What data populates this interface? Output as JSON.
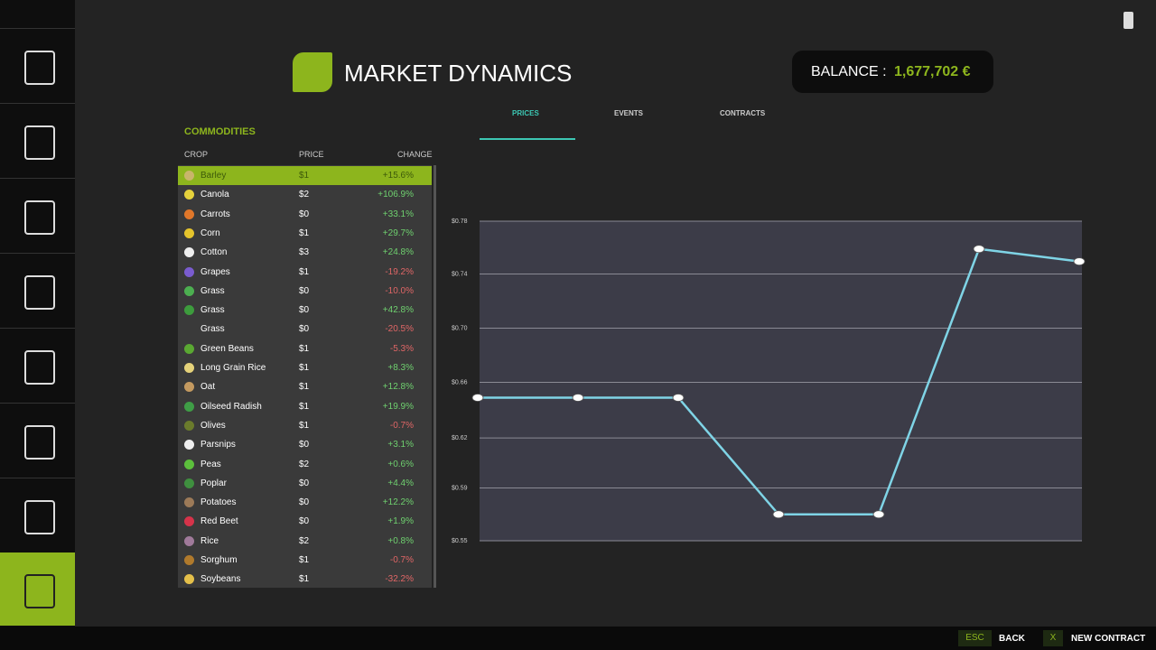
{
  "header": {
    "title": "MARKET DYNAMICS",
    "balance_label": "BALANCE :",
    "balance_value": "1,677,702 €"
  },
  "tabs": [
    "PRICES",
    "EVENTS",
    "CONTRACTS"
  ],
  "commodities": {
    "title": "COMMODITIES",
    "columns": [
      "CROP",
      "PRICE",
      "CHANGE"
    ],
    "rows": [
      [
        "Barley",
        "$1",
        "+15.6%"
      ],
      [
        "Canola",
        "$2",
        "+106.9%"
      ],
      [
        "Carrots",
        "$0",
        "+33.1%"
      ],
      [
        "Corn",
        "$1",
        "+29.7%"
      ],
      [
        "Cotton",
        "$3",
        "+24.8%"
      ],
      [
        "Grapes",
        "$1",
        "-19.2%"
      ],
      [
        "Grass",
        "$0",
        "-10.0%"
      ],
      [
        "Grass",
        "$0",
        "+42.8%"
      ],
      [
        "Grass",
        "$0",
        "-20.5%"
      ],
      [
        "Green Beans",
        "$1",
        "-5.3%"
      ],
      [
        "Long Grain Rice",
        "$1",
        "+8.3%"
      ],
      [
        "Oat",
        "$1",
        "+12.8%"
      ],
      [
        "Oilseed Radish",
        "$1",
        "+19.9%"
      ],
      [
        "Olives",
        "$1",
        "-0.7%"
      ],
      [
        "Parsnips",
        "$0",
        "+3.1%"
      ],
      [
        "Peas",
        "$2",
        "+0.6%"
      ],
      [
        "Poplar",
        "$0",
        "+4.4%"
      ],
      [
        "Potatoes",
        "$0",
        "+12.2%"
      ],
      [
        "Red Beet",
        "$0",
        "+1.9%"
      ],
      [
        "Rice",
        "$2",
        "+0.8%"
      ],
      [
        "Sorghum",
        "$1",
        "-0.7%"
      ],
      [
        "Soybeans",
        "$1",
        "-32.2%"
      ]
    ]
  },
  "chart_data": {
    "type": "line",
    "categories": [
      null,
      null,
      null,
      null,
      null,
      null,
      null
    ],
    "values": [
      0.653,
      0.653,
      0.653,
      0.569,
      0.569,
      0.76,
      0.751
    ],
    "color": "#7fd4e6",
    "ylim": [
      0.55,
      0.78
    ],
    "yticks": [
      {
        "value": 0.78,
        "label": "$0.78"
      },
      {
        "value": 0.742,
        "label": "$0.74"
      },
      {
        "value": 0.703,
        "label": "$0.70"
      },
      {
        "value": 0.664,
        "label": "$0.66"
      },
      {
        "value": 0.624,
        "label": "$0.62"
      },
      {
        "value": 0.588,
        "label": "$0.59"
      },
      {
        "value": 0.55,
        "label": "$0.55"
      }
    ],
    "grid": true
  },
  "footer": [
    {
      "key": "ESC",
      "label": "BACK"
    },
    {
      "key": "X",
      "label": "NEW CONTRACT"
    }
  ]
}
